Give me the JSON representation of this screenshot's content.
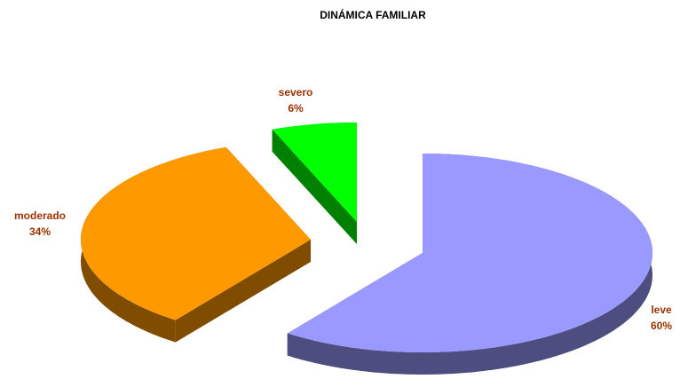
{
  "chart_data": {
    "type": "pie",
    "title": "DINÁMICA FAMILIAR",
    "categories": [
      "leve",
      "moderado",
      "severo"
    ],
    "values": [
      60,
      34,
      6
    ],
    "value_labels": [
      "60%",
      "34%",
      "6%"
    ],
    "colors": [
      "#9999ff",
      "#ff9900",
      "#00ff00"
    ],
    "three_d": true
  }
}
